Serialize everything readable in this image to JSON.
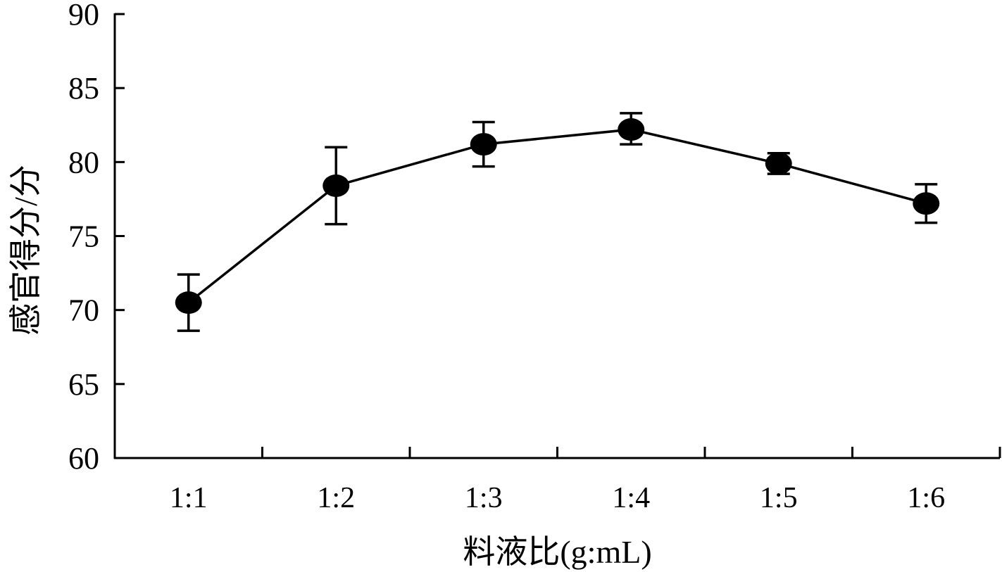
{
  "chart_data": {
    "type": "line",
    "title": "",
    "xlabel": "料液比(g:mL)",
    "ylabel": "感官得分/分",
    "categories": [
      "1:1",
      "1:2",
      "1:3",
      "1:4",
      "1:5",
      "1:6"
    ],
    "ylim": [
      60,
      90
    ],
    "yticks": [
      60,
      65,
      70,
      75,
      80,
      85,
      90
    ],
    "grid": false,
    "legend": "none",
    "series": [
      {
        "values": [
          70.5,
          78.4,
          81.2,
          82.2,
          79.9,
          77.2
        ],
        "error_upper": [
          72.4,
          81.0,
          82.7,
          83.3,
          80.6,
          78.5
        ],
        "error_lower": [
          68.6,
          75.8,
          79.7,
          81.2,
          79.2,
          75.9
        ],
        "color": "#000000"
      }
    ]
  }
}
